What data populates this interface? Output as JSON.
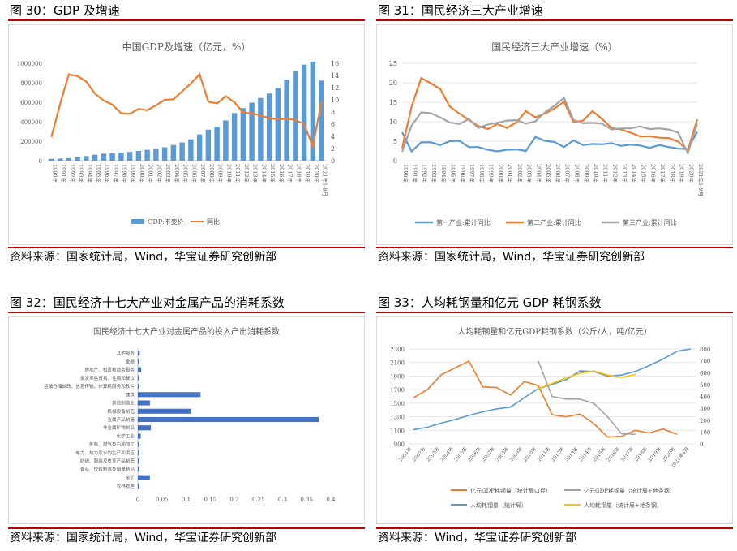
{
  "panels": [
    {
      "caption": "图 30：GDP 及增速",
      "source": "资料来源：国家统计局，Wind，华宝证券研究创新部"
    },
    {
      "caption": "图 31：国民经济三大产业增速",
      "source": "资料来源：国家统计局，Wind，华宝证券研究创新部"
    },
    {
      "caption": "图 32：国民经济十七大产业对金属产品的消耗系数",
      "source": "资料来源：国家统计局，Wind，华宝证券研究创新部"
    },
    {
      "caption": "图 33：人均耗钢量和亿元 GDP 耗钢系数",
      "source": "资料来源：Wind，华宝证券研究创新部"
    }
  ],
  "chart_data": [
    {
      "type": "bar",
      "title": "中国GDP及增速（亿元，%）",
      "categories": [
        "1990年",
        "1991年",
        "1992年",
        "1993年",
        "1994年",
        "1995年",
        "1996年",
        "1997年",
        "1998年",
        "1999年",
        "2000年",
        "2001年",
        "2002年",
        "2003年",
        "2004年",
        "2005年",
        "2006年",
        "2007年",
        "2008年",
        "2009年",
        "2010年",
        "2011年",
        "2012年",
        "2013年",
        "2014年",
        "2015年",
        "2016年",
        "2017年",
        "2018年",
        "2019年",
        "2020年",
        "2021年1-9月"
      ],
      "ylim": [
        0,
        1000000
      ],
      "yticks": [
        "0",
        "200000",
        "400000",
        "600000",
        "800000",
        "1000000"
      ],
      "y2lim": [
        0,
        16
      ],
      "y2ticks": [
        "0",
        "2",
        "4",
        "6",
        "8",
        "10",
        "12",
        "14",
        "16"
      ],
      "legend_position": "bottom",
      "series": [
        {
          "name": "GDP:不变价",
          "kind": "bar",
          "axis": "left",
          "color": "#5b9bd5",
          "values": [
            19000,
            22000,
            27000,
            35000,
            48000,
            61000,
            72000,
            79000,
            85000,
            90000,
            100000,
            111000,
            121000,
            137000,
            161000,
            187000,
            219000,
            270000,
            319000,
            349000,
            413000,
            489000,
            540000,
            596000,
            644000,
            689000,
            744000,
            832000,
            919000,
            986000,
            1015000,
            823000
          ]
        },
        {
          "name": "同比",
          "kind": "line",
          "axis": "right",
          "color": "#ed7d31",
          "values": [
            3.9,
            9.3,
            14.2,
            13.9,
            13.0,
            11.0,
            9.9,
            9.2,
            7.8,
            7.7,
            8.5,
            8.3,
            9.1,
            10.0,
            10.1,
            11.4,
            12.7,
            14.2,
            9.7,
            9.4,
            10.6,
            9.6,
            7.9,
            7.8,
            7.4,
            7.0,
            6.8,
            6.9,
            6.7,
            6.0,
            2.3,
            9.8
          ]
        }
      ]
    },
    {
      "type": "line",
      "title": "国民经济三大产业增速（%）",
      "categories": [
        "1990年",
        "1991年",
        "1992年",
        "1993年",
        "1994年",
        "1995年",
        "1996年",
        "1997年",
        "1998年",
        "1999年",
        "2000年",
        "2001年",
        "2002年",
        "2003年",
        "2004年",
        "2005年",
        "2006年",
        "2007年",
        "2008年",
        "2009年",
        "2010年",
        "2011年",
        "2012年",
        "2013年",
        "2014年",
        "2015年",
        "2016年",
        "2017年",
        "2018年",
        "2019年",
        "2020年",
        "2021年1-9月"
      ],
      "ylim": [
        0,
        25
      ],
      "yticks": [
        "0",
        "5",
        "10",
        "15",
        "20",
        "25"
      ],
      "legend_position": "bottom",
      "series": [
        {
          "name": "第一产业:累计同比",
          "color": "#5b9bd5",
          "values": [
            7.3,
            2.4,
            4.7,
            4.7,
            4.0,
            5.0,
            5.1,
            3.5,
            3.5,
            2.8,
            2.4,
            2.8,
            2.9,
            2.5,
            6.1,
            5.1,
            4.8,
            3.5,
            5.2,
            4.0,
            4.3,
            4.2,
            4.5,
            3.8,
            4.1,
            3.9,
            3.3,
            4.0,
            3.5,
            3.1,
            3.0,
            7.4
          ]
        },
        {
          "name": "第二产业:累计同比",
          "color": "#ed7d31",
          "values": [
            3.2,
            13.9,
            21.2,
            19.9,
            18.4,
            13.9,
            12.1,
            10.5,
            8.9,
            8.1,
            9.4,
            8.4,
            9.8,
            12.7,
            11.1,
            12.1,
            13.4,
            15.1,
            9.9,
            10.3,
            12.7,
            10.7,
            8.4,
            8.0,
            7.2,
            6.2,
            6.3,
            5.9,
            5.8,
            4.9,
            2.6,
            10.6
          ]
        },
        {
          "name": "第三产业:累计同比",
          "color": "#a5a5a5",
          "values": [
            2.3,
            9.0,
            12.4,
            12.2,
            11.1,
            9.8,
            9.4,
            10.7,
            8.4,
            9.3,
            9.7,
            10.3,
            10.4,
            9.5,
            10.1,
            12.4,
            14.1,
            16.1,
            10.5,
            9.6,
            9.7,
            9.5,
            8.0,
            8.3,
            8.3,
            8.8,
            8.1,
            8.3,
            8.0,
            7.2,
            1.9,
            9.5
          ]
        }
      ]
    },
    {
      "type": "bar",
      "orientation": "horizontal",
      "title": "国民经济十七大产业对金属产品的投入产出消耗系数",
      "categories": [
        "其他服务",
        "金融",
        "房地产、租赁和商务服务",
        "批发零售贸易、住宿和餐饮",
        "运输仓储邮政、信息传输、计算机服务和软件",
        "建筑",
        "其他制造业",
        "机械设备制造",
        "金属产品制造",
        "非金属矿物制品",
        "化学工业",
        "炼焦、燃气及石油加工",
        "电力、热力及水的生产和供应",
        "纺织、服装及皮革产品制造",
        "食品、饮料制造及烟草制品",
        "采矿",
        "农林牧渔"
      ],
      "values": [
        0.004,
        0.001,
        0.007,
        0.002,
        0.002,
        0.13,
        0.025,
        0.11,
        0.375,
        0.027,
        0.006,
        0.002,
        0.003,
        0.002,
        0.002,
        0.025,
        0.001
      ],
      "xlim": [
        0,
        0.4
      ],
      "xticks": [
        "0",
        "0.05",
        "0.1",
        "0.15",
        "0.2",
        "0.25",
        "0.3",
        "0.35",
        "0.4"
      ],
      "color": "#4472c4"
    },
    {
      "type": "line",
      "title": "人均耗钢量和亿元GDP耗钢系数（公斤/人，吨/亿元）",
      "categories": [
        "2001年",
        "2002年",
        "2003年",
        "2004年",
        "2005年",
        "2006年",
        "2007年",
        "2008年",
        "2009年",
        "2010年",
        "2011年",
        "2012年",
        "2013年",
        "2014年",
        "2015年",
        "2016年",
        "2017年",
        "2018年",
        "2019年",
        "2020年",
        "2021年4月"
      ],
      "ylim": [
        900,
        2300
      ],
      "yticks": [
        "900",
        "1100",
        "1300",
        "1500",
        "1700",
        "1900",
        "2100",
        "2300"
      ],
      "y2lim": [
        0,
        800
      ],
      "y2ticks": [
        "0",
        "100",
        "200",
        "300",
        "400",
        "500",
        "600",
        "700",
        "800"
      ],
      "legend_position": "bottom",
      "series": [
        {
          "name": "亿元GDP耗钢量（统计局口径）",
          "axis": "left",
          "color": "#ed7d31",
          "values": [
            1580,
            1700,
            1920,
            2020,
            2120,
            1740,
            1730,
            1620,
            1820,
            1760,
            1330,
            1300,
            1340,
            1200,
            1000,
            1010,
            1100,
            1060,
            1120,
            1040,
            null
          ]
        },
        {
          "name": "亿元GDP耗钢量（统计局+地条钢）",
          "axis": "left",
          "color": "#a5a5a5",
          "values": [
            null,
            null,
            null,
            null,
            null,
            null,
            null,
            null,
            null,
            2120,
            1600,
            1560,
            1560,
            1500,
            1300,
            1050,
            1040,
            null,
            null,
            null,
            null
          ]
        },
        {
          "name": "人均耗钢量（统计局）",
          "axis": "right",
          "color": "#5b9bd5",
          "values": [
            120,
            140,
            175,
            205,
            240,
            270,
            295,
            310,
            390,
            465,
            500,
            540,
            615,
            610,
            570,
            580,
            610,
            660,
            715,
            780,
            800
          ]
        },
        {
          "name": "人均耗钢量（统计局+地条钢）",
          "axis": "right",
          "color": "#ffc000",
          "values": [
            null,
            null,
            null,
            null,
            null,
            null,
            null,
            null,
            null,
            465,
            510,
            555,
            595,
            615,
            580,
            560,
            585,
            null,
            null,
            null,
            null
          ]
        }
      ]
    }
  ]
}
